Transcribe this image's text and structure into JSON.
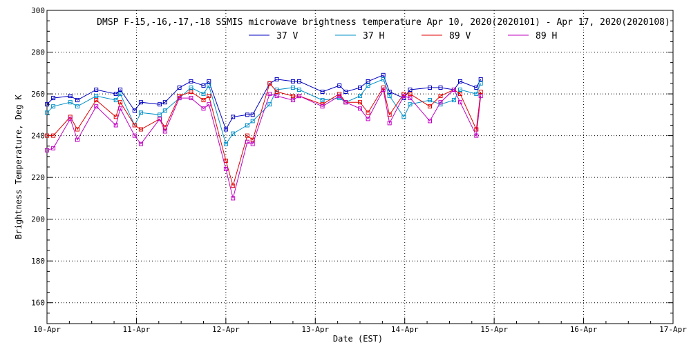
{
  "chart_data": {
    "type": "line",
    "title": "DMSP F-15,-16,-17,-18 SSMIS microwave brightness temperature Apr 10, 2020(2020101) - Apr 17, 2020(2020108)",
    "xlabel": "Date (EST)",
    "ylabel": "Brightness Temperature, Deg K",
    "xlim": [
      0,
      7
    ],
    "ylim": [
      150,
      300
    ],
    "grid": true,
    "legend_position": "top-center",
    "x_tick_labels": [
      "10-Apr",
      "11-Apr",
      "12-Apr",
      "13-Apr",
      "14-Apr",
      "15-Apr",
      "16-Apr",
      "17-Apr"
    ],
    "y_ticks": [
      160,
      180,
      200,
      220,
      240,
      260,
      280,
      300
    ],
    "x_unit_note": "x values are days after 10-Apr 00:00",
    "series": [
      {
        "name": "37 V",
        "color": "#0000c0",
        "x": [
          0.0,
          0.07,
          0.26,
          0.34,
          0.55,
          0.77,
          0.82,
          0.98,
          1.05,
          1.26,
          1.32,
          1.48,
          1.61,
          1.75,
          1.81,
          2.0,
          2.08,
          2.24,
          2.3,
          2.49,
          2.57,
          2.75,
          2.82,
          3.08,
          3.27,
          3.34,
          3.5,
          3.59,
          3.76,
          3.83,
          3.99,
          4.06,
          4.28,
          4.4,
          4.55,
          4.62,
          4.8,
          4.85
        ],
        "y": [
          255,
          258,
          259,
          257,
          262,
          260,
          262,
          252,
          256,
          255,
          256,
          263,
          266,
          264,
          266,
          243,
          249,
          250,
          250,
          265,
          267,
          266,
          266,
          261,
          264,
          261,
          263,
          266,
          269,
          261,
          258,
          262,
          263,
          263,
          262,
          266,
          263,
          267
        ]
      },
      {
        "name": "37 H",
        "color": "#0090c8",
        "x": [
          0.0,
          0.07,
          0.26,
          0.34,
          0.55,
          0.77,
          0.82,
          0.98,
          1.05,
          1.26,
          1.32,
          1.48,
          1.61,
          1.75,
          1.81,
          2.0,
          2.08,
          2.24,
          2.3,
          2.49,
          2.57,
          2.75,
          2.82,
          3.08,
          3.27,
          3.34,
          3.5,
          3.59,
          3.76,
          3.83,
          3.99,
          4.06,
          4.28,
          4.4,
          4.55,
          4.62,
          4.8,
          4.85
        ],
        "y": [
          251,
          254,
          256,
          254,
          259,
          257,
          260,
          245,
          251,
          250,
          252,
          258,
          263,
          260,
          264,
          236,
          241,
          245,
          247,
          255,
          262,
          263,
          262,
          257,
          258,
          256,
          259,
          264,
          267,
          259,
          249,
          255,
          257,
          255,
          257,
          262,
          260,
          265
        ]
      },
      {
        "name": "89 V",
        "color": "#e00000",
        "x": [
          0.0,
          0.07,
          0.26,
          0.34,
          0.55,
          0.77,
          0.82,
          0.98,
          1.05,
          1.26,
          1.32,
          1.48,
          1.61,
          1.75,
          1.81,
          2.0,
          2.08,
          2.24,
          2.3,
          2.49,
          2.57,
          2.75,
          2.82,
          3.08,
          3.27,
          3.34,
          3.5,
          3.59,
          3.76,
          3.83,
          3.99,
          4.06,
          4.28,
          4.4,
          4.55,
          4.62,
          4.8,
          4.85
        ],
        "y": [
          240,
          240,
          249,
          243,
          257,
          249,
          256,
          245,
          243,
          248,
          244,
          259,
          261,
          257,
          259,
          228,
          216,
          240,
          238,
          265,
          261,
          259,
          259,
          255,
          260,
          256,
          256,
          251,
          263,
          250,
          260,
          260,
          254,
          259,
          262,
          260,
          243,
          261
        ]
      },
      {
        "name": "89 H",
        "color": "#c000c0",
        "x": [
          0.0,
          0.07,
          0.26,
          0.34,
          0.55,
          0.77,
          0.82,
          0.98,
          1.05,
          1.26,
          1.32,
          1.48,
          1.61,
          1.75,
          1.81,
          2.0,
          2.08,
          2.24,
          2.3,
          2.49,
          2.57,
          2.75,
          2.82,
          3.08,
          3.27,
          3.34,
          3.5,
          3.59,
          3.76,
          3.83,
          3.99,
          4.06,
          4.28,
          4.4,
          4.55,
          4.62,
          4.8,
          4.85
        ],
        "y": [
          233,
          234,
          248,
          238,
          254,
          245,
          253,
          240,
          236,
          248,
          242,
          258,
          258,
          253,
          255,
          224,
          210,
          237,
          236,
          260,
          259,
          257,
          259,
          254,
          259,
          256,
          253,
          248,
          262,
          246,
          259,
          258,
          247,
          256,
          262,
          256,
          240,
          259
        ]
      }
    ]
  }
}
